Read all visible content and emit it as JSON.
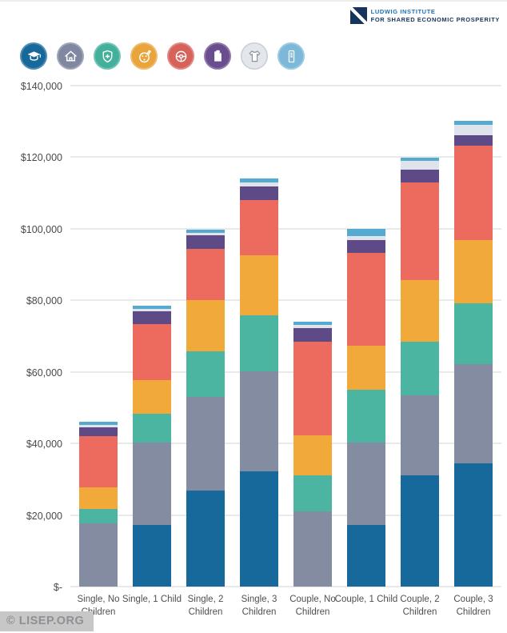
{
  "header": {
    "logo": {
      "line1": "LUDWIG INSTITUTE",
      "line2": "FOR SHARED ECONOMIC PROSPERITY",
      "brand_blue": "#1d70b8",
      "brand_navy": "#16355c"
    }
  },
  "legend_icons": [
    {
      "name": "graduation-cap-icon",
      "circle_color": "#17699b"
    },
    {
      "name": "house-icon",
      "circle_color": "#7f88a0"
    },
    {
      "name": "shield-cross-icon",
      "circle_color": "#43b09b"
    },
    {
      "name": "paint-palette-icon",
      "circle_color": "#e9a43b"
    },
    {
      "name": "steering-wheel-icon",
      "circle_color": "#d6625a"
    },
    {
      "name": "clipboard-icon",
      "circle_color": "#6a4d8e"
    },
    {
      "name": "t-shirt-icon",
      "circle_color": "#e3e6ea"
    },
    {
      "name": "mobile-phone-icon",
      "circle_color": "#7cb8d8"
    }
  ],
  "chart_data": {
    "type": "bar",
    "stacked": true,
    "grid": true,
    "ylim": [
      0,
      140000
    ],
    "ylabel": "",
    "xlabel": "",
    "categories": [
      "Single, No Children",
      "Single, 1 Child",
      "Single, 2 Children",
      "Single, 3 Children",
      "Couple, No Children",
      "Couple, 1 Child",
      "Couple, 2 Children",
      "Couple, 3 Children"
    ],
    "yticks": [
      {
        "label": "$-",
        "value": 0
      },
      {
        "label": "$20,000",
        "value": 20000
      },
      {
        "label": "$40,000",
        "value": 40000
      },
      {
        "label": "$60,000",
        "value": 60000
      },
      {
        "label": "$80,000",
        "value": 80000
      },
      {
        "label": "$100,000",
        "value": 100000
      },
      {
        "label": "$120,000",
        "value": 120000
      },
      {
        "label": "$140,000",
        "value": 140000
      }
    ],
    "series": [
      {
        "name": "childcare-education",
        "icon": "graduation-cap",
        "color": "#17699b",
        "values": [
          0,
          17300,
          26900,
          32200,
          0,
          17300,
          31100,
          34400
        ]
      },
      {
        "name": "housing",
        "icon": "house",
        "color": "#848ca2",
        "values": [
          17600,
          22900,
          26000,
          28000,
          21100,
          22900,
          22400,
          27800
        ]
      },
      {
        "name": "healthcare",
        "icon": "shield-cross",
        "color": "#4bb5a2",
        "values": [
          4000,
          8200,
          12900,
          15600,
          10000,
          14900,
          14900,
          16900
        ]
      },
      {
        "name": "food-misc-orange",
        "icon": "paint-palette",
        "color": "#f1a93a",
        "values": [
          6200,
          9300,
          14200,
          16700,
          11100,
          12200,
          17300,
          17800
        ]
      },
      {
        "name": "transportation",
        "icon": "steering-wheel",
        "color": "#ec6a5e",
        "values": [
          14200,
          15700,
          14400,
          15600,
          26200,
          26000,
          27300,
          26400
        ]
      },
      {
        "name": "misc-purple",
        "icon": "clipboard",
        "color": "#5e4a87",
        "values": [
          2400,
          3600,
          3800,
          3800,
          3800,
          3600,
          3600,
          2900
        ]
      },
      {
        "name": "clothing",
        "icon": "t-shirt",
        "color": "#dfe3ec",
        "values": [
          700,
          600,
          700,
          1100,
          900,
          1100,
          2400,
          2900
        ]
      },
      {
        "name": "technology",
        "icon": "mobile-phone",
        "color": "#54aacf",
        "values": [
          900,
          900,
          900,
          1100,
          900,
          2000,
          900,
          1100
        ]
      }
    ],
    "totals": [
      46000,
      78500,
      99800,
      114100,
      74000,
      100000,
      119900,
      130200
    ]
  },
  "footer": {
    "watermark": "© LISEP.ORG"
  }
}
